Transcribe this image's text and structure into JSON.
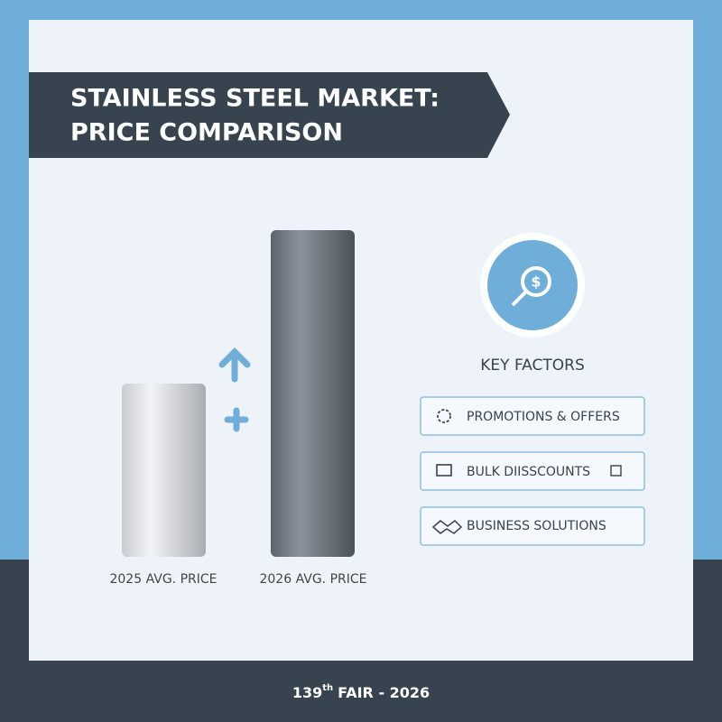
{
  "header": {
    "title_line1": "STAINLESS STEEL MARKET:",
    "title_line2": "PRICE COMPARISON"
  },
  "bars": [
    {
      "label": "2025 AVG. PRICE"
    },
    {
      "label": "2026 AVG. PRICE"
    }
  ],
  "key_factors": {
    "title": "KEY FACTORS",
    "items": [
      "PROMOTIONS & OFFERS",
      "BULK DIISSCOUNTS",
      "BUSINESS SOLUTIONS"
    ]
  },
  "footer": {
    "number": "139",
    "suffix": "th",
    "text": "FAIR - 2026"
  }
}
